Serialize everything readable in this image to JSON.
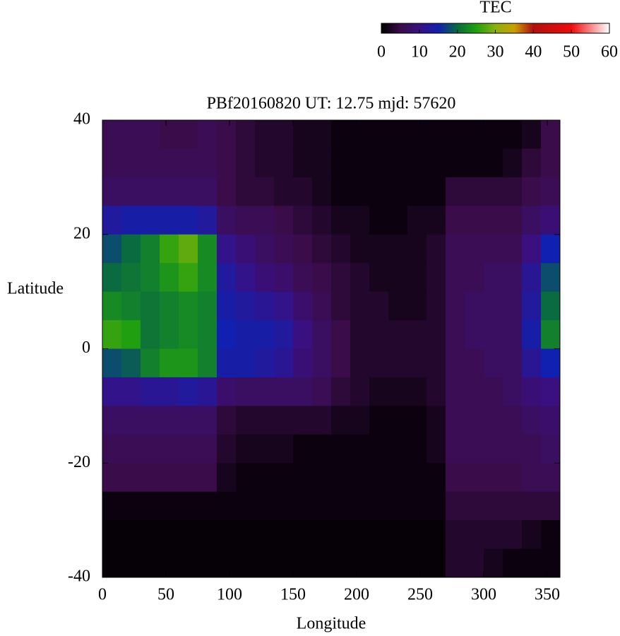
{
  "chart_data": {
    "type": "heatmap",
    "title": "PBf20160820  UT: 12.75  mjd: 57620",
    "xlabel": "Longitude",
    "ylabel": "Latitude",
    "colorbar_label": "TEC",
    "xlim": [
      0,
      360
    ],
    "xticks": [
      0,
      50,
      100,
      150,
      200,
      250,
      300,
      350
    ],
    "ylim": [
      -40,
      40
    ],
    "yticks": [
      -40,
      -20,
      0,
      20,
      40
    ],
    "clim": [
      0,
      60
    ],
    "cticks": [
      0,
      10,
      20,
      30,
      40,
      50,
      60
    ],
    "colormap": [
      {
        "value": 0,
        "color": "#000000"
      },
      {
        "value": 5,
        "color": "#3a0c4a"
      },
      {
        "value": 10,
        "color": "#3a1080"
      },
      {
        "value": 15,
        "color": "#1020b0"
      },
      {
        "value": 20,
        "color": "#0a6a40"
      },
      {
        "value": 25,
        "color": "#20a010"
      },
      {
        "value": 30,
        "color": "#8ab010"
      },
      {
        "value": 35,
        "color": "#c8a000"
      },
      {
        "value": 40,
        "color": "#b01010"
      },
      {
        "value": 50,
        "color": "#f00a0a"
      },
      {
        "value": 60,
        "color": "#ffffff"
      }
    ],
    "x": [
      7.5,
      22.5,
      37.5,
      52.5,
      67.5,
      82.5,
      97.5,
      112.5,
      127.5,
      142.5,
      157.5,
      172.5,
      187.5,
      202.5,
      217.5,
      232.5,
      247.5,
      262.5,
      277.5,
      292.5,
      307.5,
      322.5,
      337.5,
      352.5
    ],
    "y": [
      37.5,
      32.5,
      27.5,
      22.5,
      17.5,
      12.5,
      7.5,
      2.5,
      -2.5,
      -7.5,
      -12.5,
      -17.5,
      -22.5,
      -27.5,
      -32.5,
      -37.5
    ],
    "z": [
      [
        6,
        6,
        6,
        5,
        5,
        6,
        5,
        4,
        3,
        3,
        2,
        2,
        1,
        1,
        1,
        1,
        1,
        1,
        1,
        1,
        1,
        1,
        2,
        5
      ],
      [
        6,
        6,
        6,
        6,
        6,
        6,
        5,
        4,
        3,
        3,
        2,
        2,
        1,
        1,
        1,
        1,
        1,
        1,
        1,
        1,
        1,
        2,
        4,
        5
      ],
      [
        7,
        7,
        7,
        7,
        7,
        7,
        5,
        4,
        4,
        3,
        3,
        2,
        1,
        1,
        1,
        1,
        1,
        1,
        4,
        4,
        4,
        4,
        5,
        6
      ],
      [
        13,
        14,
        14,
        14,
        14,
        13,
        7,
        6,
        6,
        5,
        4,
        3,
        2,
        2,
        1,
        1,
        2,
        2,
        5,
        5,
        5,
        5,
        7,
        9
      ],
      [
        18,
        20,
        22,
        26,
        28,
        23,
        11,
        9,
        7,
        6,
        5,
        4,
        3,
        2,
        2,
        2,
        2,
        3,
        6,
        6,
        6,
        6,
        10,
        15
      ],
      [
        20,
        21,
        22,
        24,
        26,
        23,
        13,
        11,
        9,
        8,
        6,
        5,
        4,
        3,
        2,
        2,
        2,
        3,
        6,
        6,
        7,
        7,
        12,
        18
      ],
      [
        23,
        22,
        21,
        22,
        23,
        22,
        14,
        13,
        12,
        11,
        8,
        6,
        4,
        3,
        3,
        2,
        2,
        3,
        6,
        7,
        7,
        7,
        13,
        20
      ],
      [
        26,
        25,
        21,
        22,
        23,
        22,
        15,
        14,
        14,
        13,
        10,
        7,
        5,
        3,
        3,
        3,
        3,
        3,
        6,
        7,
        7,
        7,
        14,
        22
      ],
      [
        18,
        19,
        22,
        24,
        24,
        22,
        14,
        14,
        13,
        12,
        9,
        7,
        5,
        3,
        3,
        3,
        3,
        3,
        6,
        6,
        7,
        7,
        12,
        15
      ],
      [
        11,
        11,
        12,
        12,
        13,
        12,
        8,
        7,
        7,
        7,
        7,
        6,
        4,
        3,
        2,
        2,
        2,
        3,
        6,
        6,
        6,
        7,
        9,
        10
      ],
      [
        7,
        7,
        7,
        7,
        7,
        7,
        4,
        3,
        3,
        3,
        3,
        3,
        2,
        2,
        1,
        1,
        1,
        2,
        6,
        6,
        6,
        6,
        7,
        8
      ],
      [
        6,
        6,
        6,
        6,
        6,
        6,
        3,
        2,
        2,
        2,
        1,
        1,
        1,
        1,
        1,
        1,
        1,
        2,
        6,
        6,
        6,
        6,
        6,
        7
      ],
      [
        5,
        5,
        5,
        5,
        5,
        5,
        2,
        1,
        1,
        1,
        1,
        1,
        1,
        1,
        1,
        1,
        1,
        1,
        5,
        5,
        5,
        5,
        6,
        6
      ],
      [
        1,
        1,
        1,
        1,
        1,
        1,
        1,
        1,
        1,
        1,
        1,
        1,
        1,
        1,
        1,
        1,
        1,
        1,
        4,
        4,
        4,
        4,
        4,
        4
      ],
      [
        0.5,
        0.5,
        0.5,
        0.5,
        0.5,
        0.5,
        0.5,
        0.5,
        0.5,
        0.5,
        0.5,
        0.5,
        0.5,
        0.5,
        0.5,
        0.5,
        0.5,
        0.5,
        3,
        3,
        3,
        3,
        2,
        1
      ],
      [
        0.5,
        0.5,
        0.5,
        0.5,
        0.5,
        0.5,
        0.5,
        0.5,
        0.5,
        0.5,
        0.5,
        0.5,
        0.5,
        0.5,
        0.5,
        0.5,
        0.5,
        0.5,
        3,
        3,
        2,
        1,
        1,
        1
      ]
    ]
  }
}
